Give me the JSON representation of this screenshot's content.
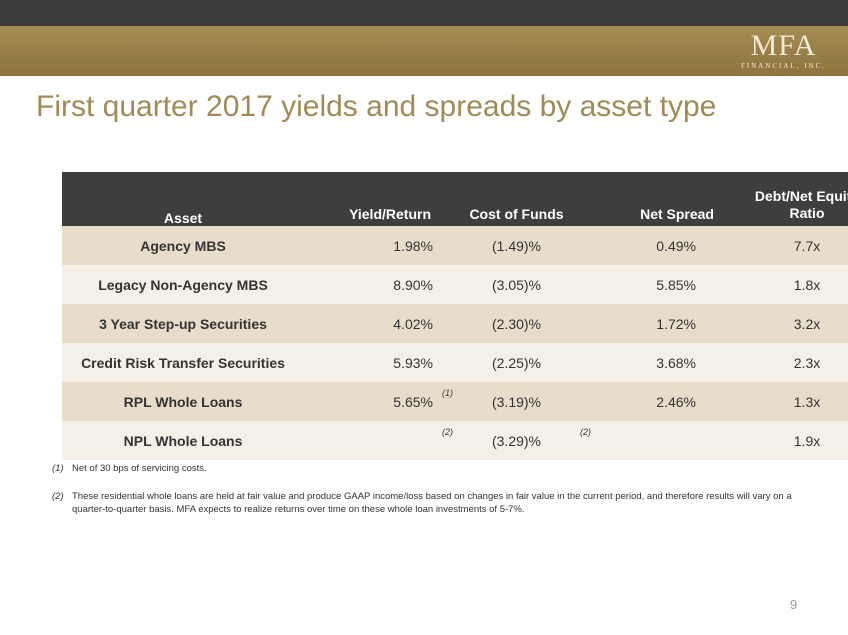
{
  "header": {
    "logo": "MFA",
    "logo_sub": "FINANCIAL, INC."
  },
  "title": "First quarter 2017 yields and spreads by asset type",
  "table": {
    "columns": [
      "Asset",
      "Yield/Return",
      "Cost of Funds",
      "Net Spread",
      "Debt/Net Equity Ratio"
    ],
    "rows": [
      [
        "Agency MBS",
        "1.98%",
        "(1.49)%",
        "0.49%",
        "7.7x"
      ],
      [
        "Legacy Non-Agency MBS",
        "8.90%",
        "(3.05)%",
        "5.85%",
        "1.8x"
      ],
      [
        "3 Year Step-up Securities",
        "4.02%",
        "(2.30)%",
        "1.72%",
        "3.2x"
      ],
      [
        "Credit Risk Transfer Securities",
        "5.93%",
        "(2.25)%",
        "3.68%",
        "2.3x"
      ],
      [
        "RPL Whole Loans",
        {
          "text": "5.65%",
          "note": "(1)"
        },
        "(3.19)%",
        "2.46%",
        "1.3x"
      ],
      [
        "NPL Whole Loans",
        {
          "note": "(2)"
        },
        "(3.29)%",
        {
          "note": "(2)"
        },
        "1.9x"
      ]
    ]
  },
  "footnotes": [
    {
      "marker": "(1)",
      "text": "Net of 30 bps of servicing costs."
    },
    {
      "marker": "(2)",
      "text": "These residential whole loans are held at fair value and produce GAAP income/loss based on changes in fair value in the current period, and therefore results will vary on a quarter-to-quarter basis. MFA expects to realize returns over time on these whole loan investments of 5-7%."
    }
  ],
  "page_number": "9"
}
